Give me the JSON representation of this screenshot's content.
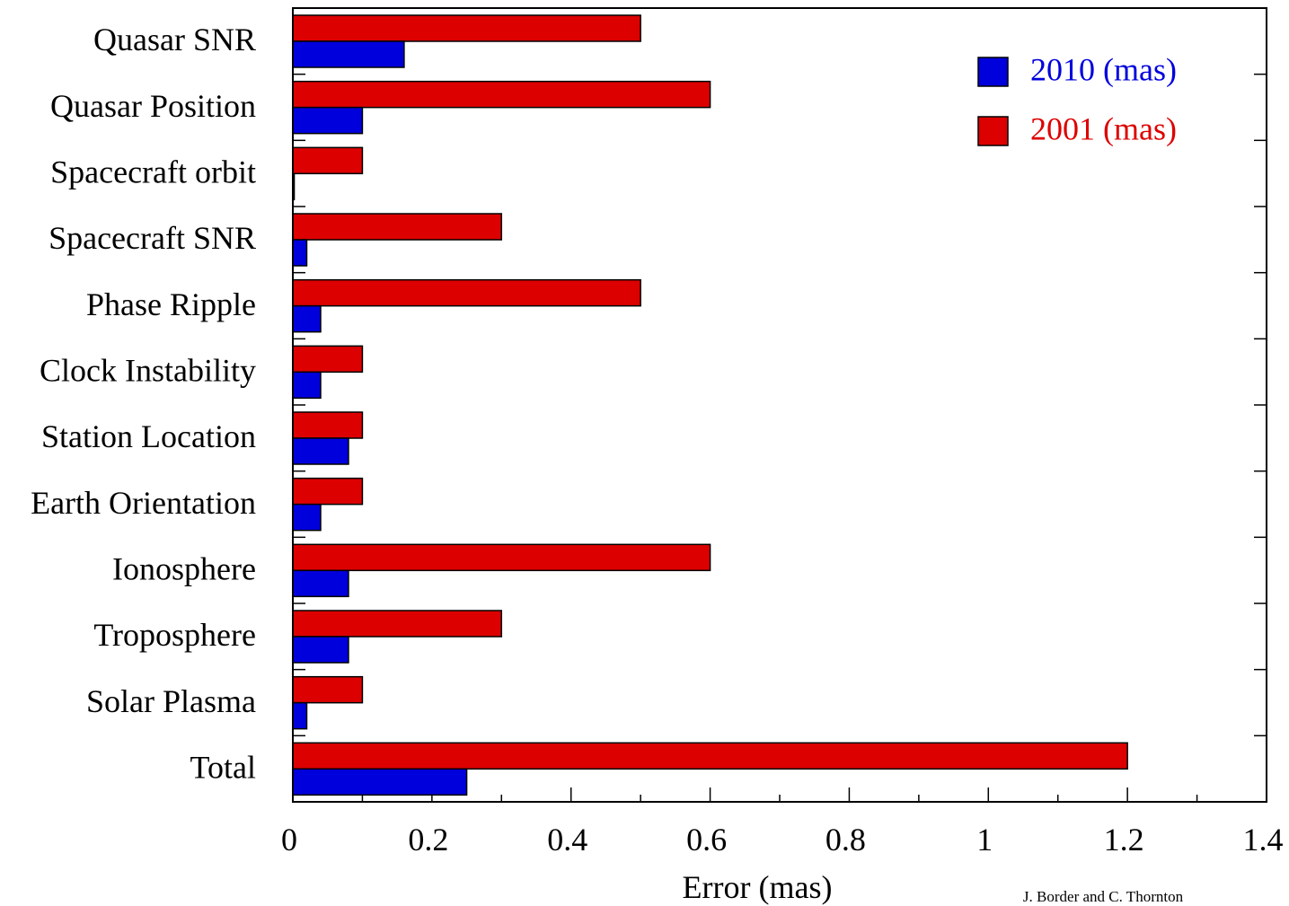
{
  "chart_data": {
    "type": "bar",
    "orientation": "horizontal",
    "categories": [
      "Quasar SNR",
      "Quasar Position",
      "Spacecraft orbit",
      "Spacecraft SNR",
      "Phase Ripple",
      "Clock Instability",
      "Station Location",
      "Earth Orientation",
      "Ionosphere",
      "Troposphere",
      "Solar Plasma",
      "Total"
    ],
    "series": [
      {
        "name": "2001 (mas)",
        "color": "#dd0000",
        "values": [
          0.5,
          0.6,
          0.1,
          0.3,
          0.5,
          0.1,
          0.1,
          0.1,
          0.6,
          0.3,
          0.1,
          1.2
        ]
      },
      {
        "name": "2010 (mas)",
        "color": "#0000dd",
        "values": [
          0.16,
          0.1,
          0.002,
          0.02,
          0.04,
          0.04,
          0.08,
          0.04,
          0.08,
          0.08,
          0.02,
          0.25
        ]
      }
    ],
    "xlabel": "Error (mas)",
    "ylabel": "",
    "xlim": [
      0,
      1.4
    ],
    "xticks": [
      "0",
      "0.2",
      "0.4",
      "0.6",
      "0.8",
      "1",
      "1.2",
      "1.4"
    ],
    "legend": {
      "placement": "top-right",
      "entries": [
        {
          "label": "2010 (mas)",
          "color": "#0000dd"
        },
        {
          "label": "2001 (mas)",
          "color": "#dd0000"
        }
      ]
    },
    "grid": false,
    "credit": "J. Border and C. Thornton"
  }
}
